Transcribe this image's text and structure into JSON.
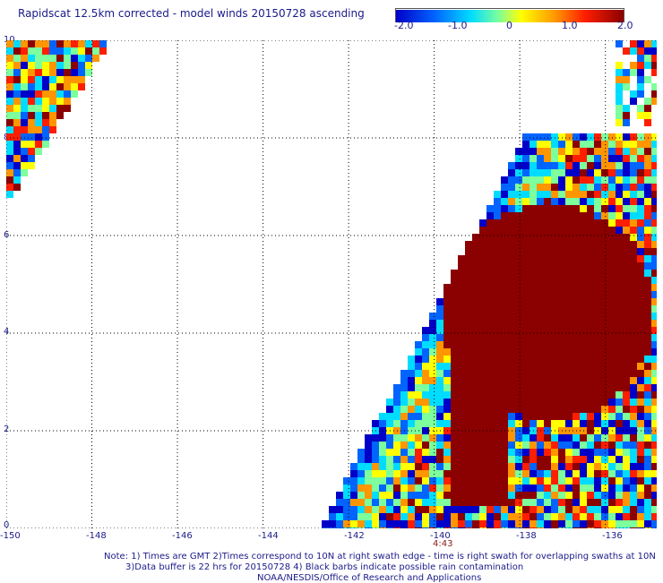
{
  "title": "Rapidscat 12.5km corrected - model winds 20150728 ascending",
  "colorbar": {
    "ticks": [
      "-2.0",
      "-1.0",
      "0",
      "1.0",
      "2.0"
    ],
    "colors": [
      "#0000c8",
      "#0064ff",
      "#00dcff",
      "#7cff9c",
      "#ffff00",
      "#ff9600",
      "#ff1e00",
      "#8b0000"
    ]
  },
  "map": {
    "lon_range": [
      -150,
      -134.8
    ],
    "lat_range": [
      0,
      10
    ],
    "lon_ticks": [
      "-150",
      "-148",
      "-146",
      "-144",
      "-142",
      "-140",
      "-138",
      "-136"
    ],
    "lat_ticks": [
      "10",
      "8",
      "6",
      "4",
      "2",
      "0"
    ],
    "time_marker": {
      "label": "4:43",
      "lon": -140
    },
    "gridlines": true
  },
  "notes": [
    "Note: 1) Times are GMT 2)Times correspond to 10N at right swath edge - time is right swath for overlapping swaths at 10N",
    "3)Data buffer is 22 hrs for 20150728 4) Black barbs indicate possible rain contamination",
    "NOAA/NESDIS/Office of Research and Applications"
  ]
}
